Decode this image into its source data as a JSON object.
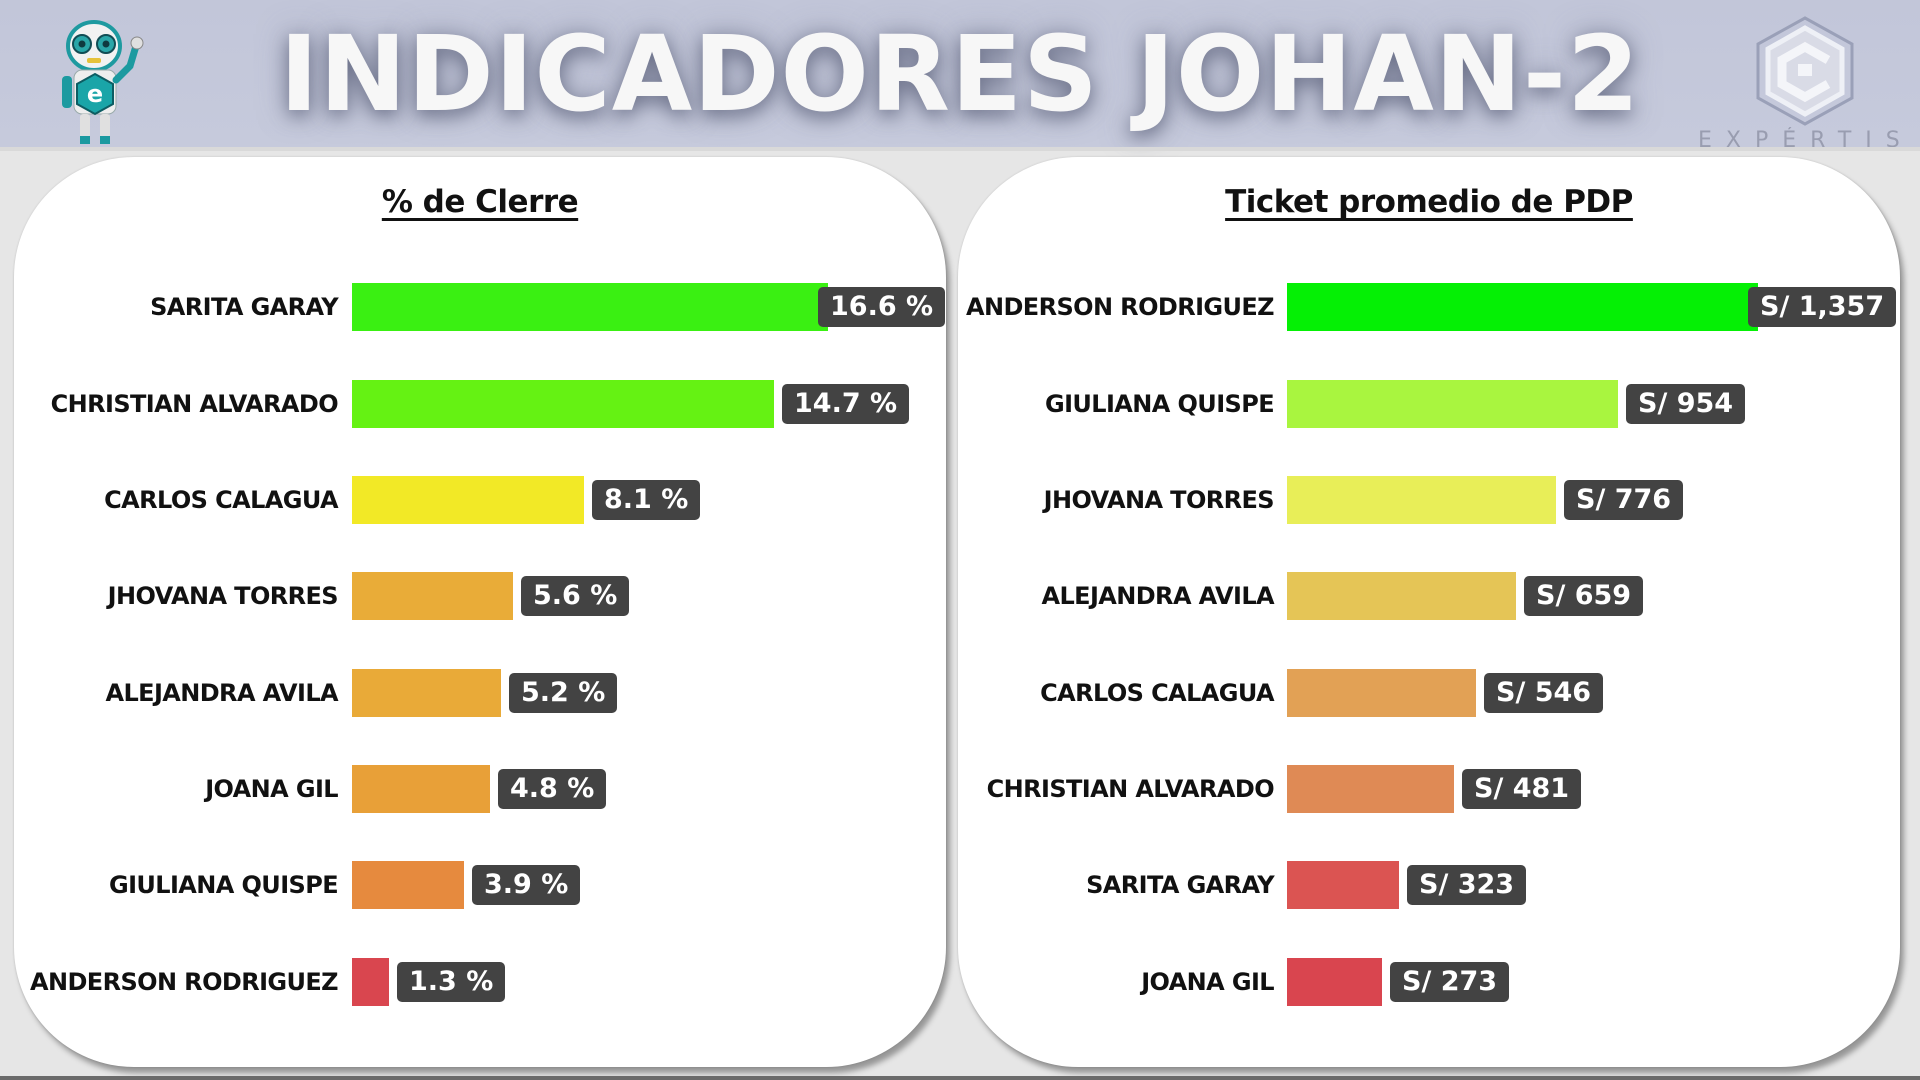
{
  "header": {
    "title": "INDICADORES JOHAN-2",
    "brand_text": "EXPÉRTIS",
    "mascot": "robot-mascot",
    "logo": "expertis-hexagon-logo"
  },
  "charts": {
    "left": {
      "title": "% de Clerre",
      "rows": [
        {
          "name": "SARITA GARAY",
          "value": 16.6,
          "label": "16.6 %",
          "color": "#3af012"
        },
        {
          "name": "CHRISTIAN ALVARADO",
          "value": 14.7,
          "label": "14.7 %",
          "color": "#65f213"
        },
        {
          "name": "CARLOS CALAGUA",
          "value": 8.1,
          "label": "8.1 %",
          "color": "#f2e926"
        },
        {
          "name": "JHOVANA TORRES",
          "value": 5.6,
          "label": "5.6 %",
          "color": "#e9ac38"
        },
        {
          "name": "ALEJANDRA AVILA",
          "value": 5.2,
          "label": "5.2 %",
          "color": "#e9aa38"
        },
        {
          "name": "JOANA GIL",
          "value": 4.8,
          "label": "4.8 %",
          "color": "#e8a038"
        },
        {
          "name": "GIULIANA QUISPE",
          "value": 3.9,
          "label": "3.9 %",
          "color": "#e68a3e"
        },
        {
          "name": "ANDERSON RODRIGUEZ",
          "value": 1.3,
          "label": "1.3 %",
          "color": "#d9464f"
        }
      ]
    },
    "right": {
      "title": "Ticket promedio de PDP",
      "rows": [
        {
          "name": "ANDERSON RODRIGUEZ",
          "value": 1357,
          "label": "S/ 1,357",
          "color": "#05f005"
        },
        {
          "name": "GIULIANA QUISPE",
          "value": 954,
          "label": "S/ 954",
          "color": "#a9f53f"
        },
        {
          "name": "JHOVANA TORRES",
          "value": 776,
          "label": "S/ 776",
          "color": "#e8ee58"
        },
        {
          "name": "ALEJANDRA AVILA",
          "value": 659,
          "label": "S/ 659",
          "color": "#e5c556"
        },
        {
          "name": "CARLOS CALAGUA",
          "value": 546,
          "label": "S/ 546",
          "color": "#e2a155"
        },
        {
          "name": "CHRISTIAN ALVARADO",
          "value": 481,
          "label": "S/ 481",
          "color": "#df8a55"
        },
        {
          "name": "SARITA GARAY",
          "value": 323,
          "label": "S/ 323",
          "color": "#db5452"
        },
        {
          "name": "JOANA GIL",
          "value": 273,
          "label": "S/ 273",
          "color": "#d9454f"
        }
      ]
    }
  },
  "chart_data": [
    {
      "type": "bar",
      "orientation": "horizontal",
      "title": "% de Clerre",
      "categories": [
        "SARITA GARAY",
        "CHRISTIAN ALVARADO",
        "CARLOS CALAGUA",
        "JHOVANA TORRES",
        "ALEJANDRA AVILA",
        "JOANA GIL",
        "GIULIANA QUISPE",
        "ANDERSON RODRIGUEZ"
      ],
      "values": [
        16.6,
        14.7,
        8.1,
        5.6,
        5.2,
        4.8,
        3.9,
        1.3
      ],
      "unit": "%",
      "data_labels": [
        "16.6 %",
        "14.7 %",
        "8.1 %",
        "5.6 %",
        "5.2 %",
        "4.8 %",
        "3.9 %",
        "1.3 %"
      ],
      "xlabel": "",
      "ylabel": "",
      "grid": false,
      "legend": "none",
      "color_scale": "green (high) to red (low)"
    },
    {
      "type": "bar",
      "orientation": "horizontal",
      "title": "Ticket promedio de PDP",
      "categories": [
        "ANDERSON RODRIGUEZ",
        "GIULIANA QUISPE",
        "JHOVANA TORRES",
        "ALEJANDRA AVILA",
        "CARLOS CALAGUA",
        "CHRISTIAN ALVARADO",
        "SARITA GARAY",
        "JOANA GIL"
      ],
      "values": [
        1357,
        954,
        776,
        659,
        546,
        481,
        323,
        273
      ],
      "unit": "S/",
      "data_labels": [
        "S/ 1,357",
        "S/ 954",
        "S/ 776",
        "S/ 659",
        "S/ 546",
        "S/ 481",
        "S/ 323",
        "S/ 273"
      ],
      "xlabel": "",
      "ylabel": "",
      "grid": false,
      "legend": "none",
      "color_scale": "green (high) to red (low)"
    }
  ]
}
